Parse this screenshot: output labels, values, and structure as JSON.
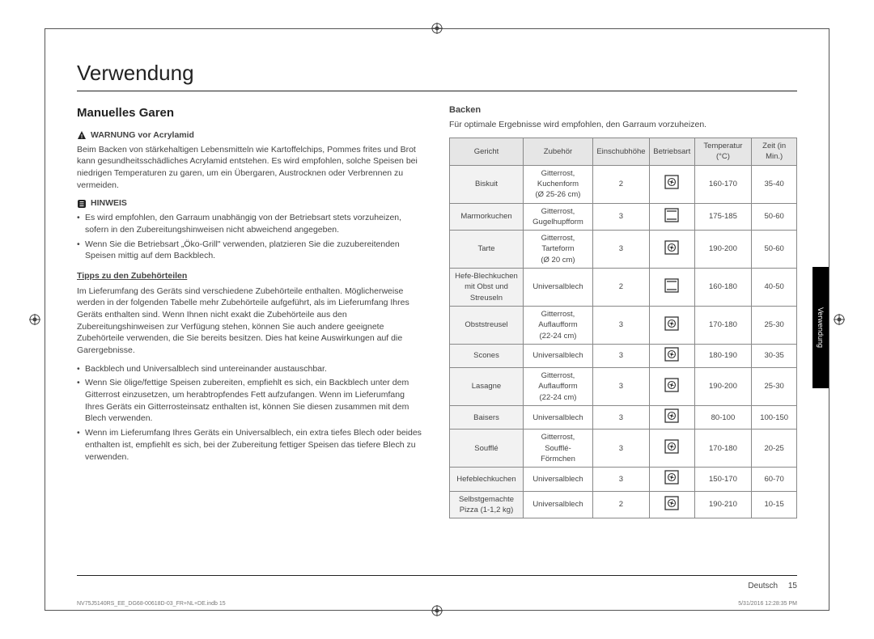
{
  "page_title": "Verwendung",
  "side_tab": "Verwendung",
  "left": {
    "section_title": "Manuelles Garen",
    "warn_heading": "WARNUNG vor Acrylamid",
    "warn_text": "Beim Backen von stärkehaltigen Lebensmitteln wie Kartoffelchips, Pommes frites und Brot kann gesundheitsschädliches Acrylamid entstehen. Es wird empfohlen, solche Speisen bei niedrigen Temperaturen zu garen, um ein Übergaren, Austrocknen oder Verbrennen zu vermeiden.",
    "note_heading": "HINWEIS",
    "note_bullets": [
      "Es wird empfohlen, den Garraum unabhängig von der Betriebsart stets vorzuheizen, sofern in den Zubereitungshinweisen nicht abweichend angegeben.",
      "Wenn Sie die Betriebsart „Öko-Grill\" verwenden, platzieren Sie die zuzubereitenden Speisen mittig auf dem Backblech."
    ],
    "tipps_heading": "Tipps zu den Zubehörteilen",
    "tipps_intro": "Im Lieferumfang des Geräts sind verschiedene Zubehörteile enthalten. Möglicherweise werden in der folgenden Tabelle mehr Zubehörteile aufgeführt, als im Lieferumfang Ihres Geräts enthalten sind. Wenn Ihnen nicht exakt die Zubehörteile aus den Zubereitungshinweisen zur Verfügung stehen, können Sie auch andere geeignete Zubehörteile verwenden, die Sie bereits besitzen. Dies hat keine Auswirkungen auf die Garergebnisse.",
    "tipps_bullets": [
      "Backblech und Universalblech sind untereinander austauschbar.",
      "Wenn Sie ölige/fettige Speisen zubereiten, empfiehlt es sich, ein Backblech unter dem Gitterrost einzusetzen, um herabtropfendes Fett aufzufangen. Wenn im Lieferumfang Ihres Geräts ein Gitterrosteinsatz enthalten ist, können Sie diesen zusammen mit dem Blech verwenden.",
      "Wenn im Lieferumfang Ihres Geräts ein Universalblech, ein extra tiefes Blech oder beides enthalten ist, empfiehlt es sich, bei der Zubereitung fettiger Speisen das tiefere Blech zu verwenden."
    ]
  },
  "right": {
    "heading": "Backen",
    "intro": "Für optimale Ergebnisse wird empfohlen, den Garraum vorzuheizen.",
    "columns": [
      "Gericht",
      "Zubehör",
      "Einschubhöhe",
      "Betriebsart",
      "Temperatur (°C)",
      "Zeit (in Min.)"
    ],
    "rows": [
      {
        "dish": "Biskuit",
        "acc": "Gitterrost,\nKuchenform\n(Ø 25-26 cm)",
        "lev": "2",
        "mode": "fan",
        "temp": "160-170",
        "time": "35-40"
      },
      {
        "dish": "Marmorkuchen",
        "acc": "Gitterrost,\nGugelhupfform",
        "lev": "3",
        "mode": "conv",
        "temp": "175-185",
        "time": "50-60"
      },
      {
        "dish": "Tarte",
        "acc": "Gitterrost,\nTarteform\n(Ø 20 cm)",
        "lev": "3",
        "mode": "fan",
        "temp": "190-200",
        "time": "50-60"
      },
      {
        "dish": "Hefe-Blechkuchen\nmit Obst und\nStreuseln",
        "acc": "Universalblech",
        "lev": "2",
        "mode": "conv",
        "temp": "160-180",
        "time": "40-50"
      },
      {
        "dish": "Obststreusel",
        "acc": "Gitterrost,\nAuflaufform\n(22-24 cm)",
        "lev": "3",
        "mode": "fan",
        "temp": "170-180",
        "time": "25-30"
      },
      {
        "dish": "Scones",
        "acc": "Universalblech",
        "lev": "3",
        "mode": "fan",
        "temp": "180-190",
        "time": "30-35"
      },
      {
        "dish": "Lasagne",
        "acc": "Gitterrost,\nAuflaufform\n(22-24 cm)",
        "lev": "3",
        "mode": "fan",
        "temp": "190-200",
        "time": "25-30"
      },
      {
        "dish": "Baisers",
        "acc": "Universalblech",
        "lev": "3",
        "mode": "fan",
        "temp": "80-100",
        "time": "100-150"
      },
      {
        "dish": "Soufflé",
        "acc": "Gitterrost,\nSoufflé-\nFörmchen",
        "lev": "3",
        "mode": "fan",
        "temp": "170-180",
        "time": "20-25"
      },
      {
        "dish": "Hefeblechkuchen",
        "acc": "Universalblech",
        "lev": "3",
        "mode": "fan",
        "temp": "150-170",
        "time": "60-70"
      },
      {
        "dish": "Selbstgemachte\nPizza (1-1,2 kg)",
        "acc": "Universalblech",
        "lev": "2",
        "mode": "fan",
        "temp": "190-210",
        "time": "10-15"
      }
    ]
  },
  "footer": {
    "lang": "Deutsch",
    "page": "15",
    "print_left": "NV75J5140RS_EE_DG68-00618D-03_FR+NL+DE.indb   15",
    "print_right": "5/31/2016   12:28:35 PM"
  }
}
